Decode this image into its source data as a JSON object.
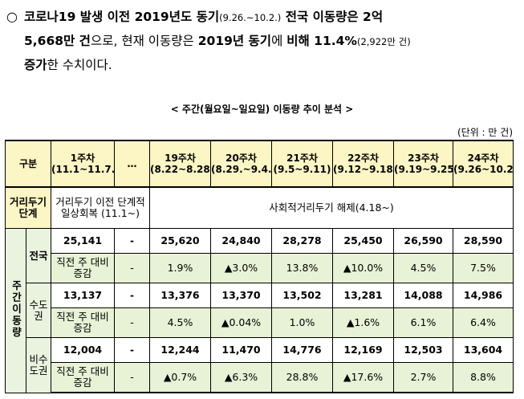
{
  "paragraph": {
    "bullet": "○",
    "line1_a": "코로나19 발생 이전 2019년도 동기",
    "line1_b": "(9.26.~10.2.)",
    "line1_c": " 전국 이동량은 2억",
    "line2_a": "5,668만 건",
    "line2_b": "으로, 현재 이동량은 ",
    "line2_c": "2019년 동기",
    "line2_d": "에 ",
    "line2_e": "비해 11.4%",
    "line2_f": "(2,922만 건)",
    "line3_a": "증가",
    "line3_b": "한 수치이다."
  },
  "table_title": "< 주간(월요일~일요일) 이동량 추이 분석 >",
  "unit_label": "(단위 : 만 건)",
  "header": {
    "category": "구분",
    "weeks": [
      {
        "label": "1주차",
        "range": "(11.1~11.7.)"
      },
      {
        "label": "…",
        "range": ""
      },
      {
        "label": "19주차",
        "range": "(8.22~8.28)"
      },
      {
        "label": "20주차",
        "range": "(8.29.~9.4.)"
      },
      {
        "label": "21주차",
        "range": "(9.5~9.11)"
      },
      {
        "label": "22주차",
        "range": "(9.12~9.18)"
      },
      {
        "label": "23주차",
        "range": "(9.19~9.25)"
      },
      {
        "label": "24주차",
        "range": "(9.26~10.2)"
      }
    ]
  },
  "stage": {
    "label": "거리두기단계",
    "before": "거리두기 이전 단계적 일상회복 (11.1~)",
    "after": "사회적거리두기 해제(4.18~)"
  },
  "weekly_label": "주간이동량",
  "regions": [
    {
      "name": "전국",
      "values": [
        "25,141",
        "-",
        "25,620",
        "24,840",
        "28,278",
        "25,450",
        "26,590",
        "28,590"
      ],
      "change_label": "직전 주 대비 증감",
      "changes": [
        "-",
        "1.9%",
        "▲3.0%",
        "13.8%",
        "▲10.0%",
        "4.5%",
        "7.5%"
      ]
    },
    {
      "name": "수도권",
      "values": [
        "13,137",
        "-",
        "13,376",
        "13,370",
        "13,502",
        "13,281",
        "14,088",
        "14,986"
      ],
      "change_label": "직전 주 대비 증감",
      "changes": [
        "-",
        "4.5%",
        "▲0.04%",
        "1.0%",
        "▲1.6%",
        "6.1%",
        "6.4%"
      ]
    },
    {
      "name": "비수도권",
      "values": [
        "12,004",
        "-",
        "12,244",
        "11,470",
        "14,776",
        "12,169",
        "12,503",
        "13,604"
      ],
      "change_label": "직전 주 대비 증감",
      "changes": [
        "-",
        "▲0.7%",
        "▲6.3%",
        "28.8%",
        "▲17.6%",
        "2.7%",
        "8.8%"
      ]
    }
  ],
  "colors": {
    "header_bg": "#FCF5C4",
    "change_bg": "#E8F2D6",
    "side_bg": "#EAF3DE"
  }
}
